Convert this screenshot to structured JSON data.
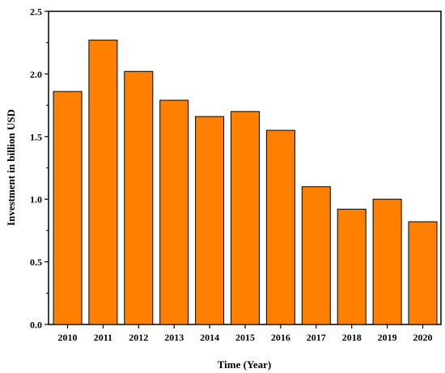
{
  "chart_data": {
    "type": "bar",
    "title": "",
    "xlabel": "Time (Year)",
    "ylabel": "Investment in billion USD",
    "categories": [
      "2010",
      "2011",
      "2012",
      "2013",
      "2014",
      "2015",
      "2016",
      "2017",
      "2018",
      "2019",
      "2020"
    ],
    "values": [
      1.86,
      2.27,
      2.02,
      1.79,
      1.66,
      1.7,
      1.55,
      1.1,
      0.92,
      1.0,
      0.82
    ],
    "ylim": [
      0,
      2.5
    ],
    "yticks": [
      "0.0",
      "0.5",
      "1.0",
      "1.5",
      "2.0",
      "2.5"
    ],
    "grid": false,
    "legend": "none",
    "bar_color": "#FF8000",
    "edge_color": "#000000"
  }
}
